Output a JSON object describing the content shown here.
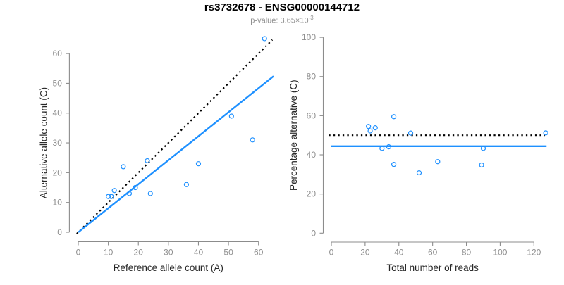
{
  "header": {
    "title": "rs3732678 - ENSG00000144712",
    "p_value_text": "p-value: 3.65×10",
    "p_value_exponent": "-3"
  },
  "colors": {
    "accent_blue": "#1E90FF",
    "dotted_black": "#000000",
    "axis_gray": "#8c8c8c",
    "tick_label_gray": "#8f8f8f",
    "axis_title_color": "#262626"
  },
  "chart_data": [
    {
      "id": "allele_counts_scatter",
      "type": "scatter",
      "xlabel": "Reference allele count (A)",
      "ylabel": "Alternative allele count (C)",
      "xlim": [
        0,
        65
      ],
      "ylim": [
        0,
        66
      ],
      "xticks": [
        0,
        10,
        20,
        30,
        40,
        50,
        60
      ],
      "yticks": [
        0,
        10,
        20,
        30,
        40,
        50,
        60
      ],
      "grid": false,
      "legend": "none",
      "points": [
        [
          10,
          12
        ],
        [
          11,
          12
        ],
        [
          12,
          14
        ],
        [
          15,
          22
        ],
        [
          17,
          13
        ],
        [
          19,
          15
        ],
        [
          23,
          24
        ],
        [
          24,
          13
        ],
        [
          36,
          16
        ],
        [
          40,
          23
        ],
        [
          51,
          39
        ],
        [
          58,
          31
        ],
        [
          62,
          65
        ]
      ],
      "lines": [
        {
          "name": "identity-line",
          "style": "dotted",
          "color": "#000000",
          "from": [
            -0.5,
            -0.5
          ],
          "to": [
            64.6,
            64.6
          ]
        },
        {
          "name": "fit-line",
          "style": "solid",
          "color": "#1E90FF",
          "from": [
            0,
            0
          ],
          "to": [
            65,
            52.4
          ]
        }
      ]
    },
    {
      "id": "percentage_vs_reads_scatter",
      "type": "scatter",
      "xlabel": "Total number of reads",
      "ylabel": "Percentage alternative (C)",
      "xlim": [
        0,
        131
      ],
      "ylim": [
        0,
        100
      ],
      "xticks": [
        0,
        20,
        40,
        60,
        80,
        100,
        120
      ],
      "yticks": [
        0,
        20,
        40,
        60,
        80,
        100
      ],
      "grid": false,
      "legend": "none",
      "points": [
        [
          22,
          54.5
        ],
        [
          23,
          52.2
        ],
        [
          26,
          53.8
        ],
        [
          30,
          43.3
        ],
        [
          34,
          44.1
        ],
        [
          37,
          59.5
        ],
        [
          37,
          35.1
        ],
        [
          47,
          51.1
        ],
        [
          52,
          30.8
        ],
        [
          63,
          36.5
        ],
        [
          89,
          34.8
        ],
        [
          90,
          43.3
        ],
        [
          127,
          51.2
        ]
      ],
      "lines": [
        {
          "name": "null-50-percent-line",
          "style": "dotted",
          "color": "#000000",
          "from": [
            -1.5,
            50
          ],
          "to": [
            126.5,
            50
          ]
        },
        {
          "name": "mean-percentage-line",
          "style": "solid",
          "color": "#1E90FF",
          "from": [
            0,
            44.4
          ],
          "to": [
            127.5,
            44.4
          ]
        }
      ]
    }
  ]
}
